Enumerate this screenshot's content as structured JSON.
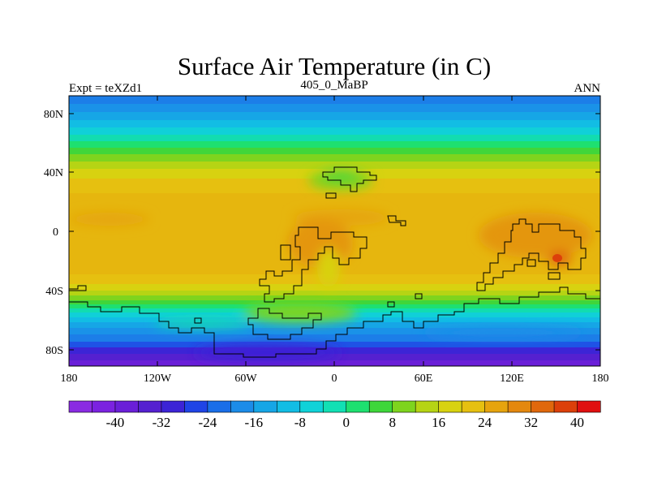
{
  "header": {
    "title": "Surface Air Temperature (in C)",
    "left": "Expt = teXZd1",
    "center": "405_0_MaBP",
    "right": "ANN"
  },
  "map": {
    "x_tick_labels": [
      "180",
      "120W",
      "60W",
      "0",
      "60E",
      "120E",
      "180"
    ],
    "y_tick_labels": [
      "80N",
      "40N",
      "0",
      "40S",
      "80S"
    ],
    "lon_range": [
      -180,
      180
    ],
    "lat_range": [
      -90,
      90
    ]
  },
  "colorbar": {
    "labels": [
      "-40",
      "-32",
      "-24",
      "-16",
      "-8",
      "0",
      "8",
      "16",
      "24",
      "32",
      "40"
    ],
    "colors": [
      "#8a2be2",
      "#7b22e0",
      "#6a1fd8",
      "#5520d0",
      "#3c24d6",
      "#1f44e6",
      "#1a6ee8",
      "#1c8ce8",
      "#16a6e6",
      "#12bde4",
      "#10d2d8",
      "#12e0b4",
      "#1ee070",
      "#3ed63a",
      "#7ed41e",
      "#b6d414",
      "#d8d210",
      "#e6c010",
      "#e6a40e",
      "#e4880e",
      "#e0680c",
      "#dc400a",
      "#e01010"
    ]
  },
  "colors": {
    "coast": "#000000",
    "frame": "#000000"
  }
}
